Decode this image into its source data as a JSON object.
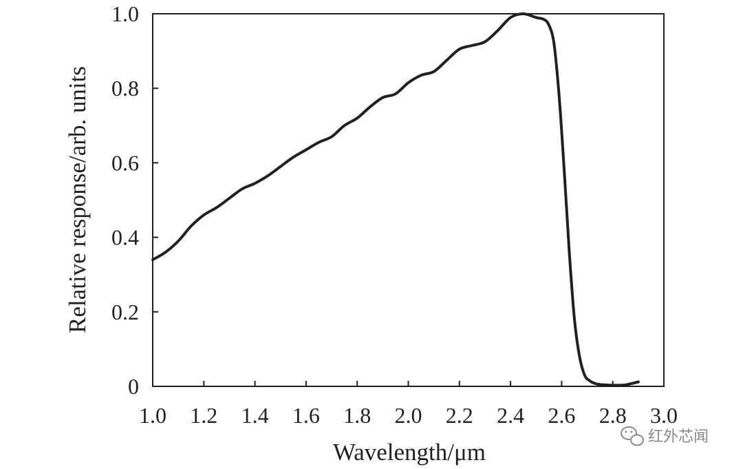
{
  "chart_data": {
    "type": "line",
    "title": "",
    "xlabel": "Wavelength/μm",
    "ylabel": "Relative response/arb. units",
    "xlim": [
      1.0,
      3.0
    ],
    "ylim": [
      0,
      1.0
    ],
    "grid": false,
    "line_color": "#231f20",
    "x_ticks": [
      1.0,
      1.2,
      1.4,
      1.6,
      1.8,
      2.0,
      2.2,
      2.4,
      2.6,
      2.8,
      3.0
    ],
    "x_tick_labels": [
      "1.0",
      "1.2",
      "1.4",
      "1.6",
      "1.8",
      "2.0",
      "2.2",
      "2.4",
      "2.6",
      "2.8",
      "3.0"
    ],
    "y_ticks": [
      0,
      0.2,
      0.4,
      0.6,
      0.8,
      1.0
    ],
    "y_tick_labels": [
      "0",
      "0.2",
      "0.4",
      "0.6",
      "0.8",
      "1.0"
    ],
    "series": [
      {
        "x": [
          1.0,
          1.05,
          1.1,
          1.15,
          1.2,
          1.25,
          1.3,
          1.35,
          1.4,
          1.45,
          1.5,
          1.55,
          1.6,
          1.65,
          1.7,
          1.75,
          1.8,
          1.85,
          1.9,
          1.95,
          2.0,
          2.05,
          2.1,
          2.15,
          2.2,
          2.25,
          2.3,
          2.35,
          2.4,
          2.45,
          2.5,
          2.53,
          2.55,
          2.57,
          2.59,
          2.61,
          2.63,
          2.65,
          2.67,
          2.69,
          2.71,
          2.73,
          2.75,
          2.77,
          2.8,
          2.85,
          2.9
        ],
        "y": [
          0.34,
          0.36,
          0.39,
          0.43,
          0.46,
          0.48,
          0.505,
          0.53,
          0.545,
          0.565,
          0.59,
          0.615,
          0.635,
          0.655,
          0.67,
          0.7,
          0.72,
          0.75,
          0.775,
          0.785,
          0.815,
          0.835,
          0.845,
          0.875,
          0.905,
          0.915,
          0.925,
          0.955,
          0.99,
          1.0,
          0.99,
          0.985,
          0.97,
          0.92,
          0.78,
          0.58,
          0.36,
          0.18,
          0.08,
          0.03,
          0.015,
          0.008,
          0.005,
          0.004,
          0.003,
          0.004,
          0.012
        ]
      }
    ]
  },
  "watermark": {
    "icon": "wechat-icon",
    "text": "红外芯闻"
  }
}
